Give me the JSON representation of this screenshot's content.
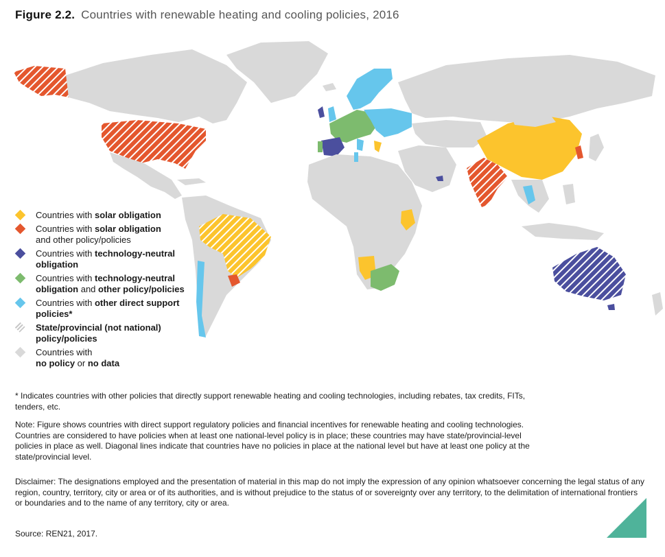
{
  "figure": {
    "label": "Figure 2.2.",
    "title": "Countries with renewable heating and cooling policies, 2016"
  },
  "colors": {
    "solar_obligation": "#fcc42d",
    "solar_plus_other": "#e4572e",
    "tech_neutral": "#4b4f9e",
    "tech_neutral_plus_other": "#7dbb6e",
    "other_direct": "#66c6ec",
    "no_data": "#d9d9d9",
    "corner_accent": "#4fb39a"
  },
  "legend": [
    {
      "id": "solar",
      "pre": "Countries with ",
      "bold": "solar obligation",
      "mid": "",
      "bold2": "",
      "post": "",
      "color": "#fcc42d"
    },
    {
      "id": "solar-other",
      "pre": "Countries with ",
      "bold": "solar obligation",
      "mid": "",
      "bold2": "",
      "post": "and other policy/policies",
      "color": "#e4572e"
    },
    {
      "id": "tech",
      "pre": "Countries with ",
      "bold": "technology-neutral obligation",
      "mid": "",
      "bold2": "",
      "post": "",
      "color": "#4b4f9e"
    },
    {
      "id": "tech-other",
      "pre": "Countries with ",
      "bold": "technology-neutral obligation",
      "mid": " and ",
      "bold2": "other policy/policies",
      "post": "",
      "color": "#7dbb6e"
    },
    {
      "id": "other",
      "pre": "Countries with ",
      "bold": "other direct support policies*",
      "mid": "",
      "bold2": "",
      "post": "",
      "color": "#66c6ec"
    },
    {
      "id": "state",
      "pre": "",
      "bold": "State/provincial (not national) policy/policies",
      "mid": "",
      "bold2": "",
      "post": "",
      "color": "striped"
    },
    {
      "id": "none",
      "pre": "Countries with ",
      "bold": "no policy",
      "mid": " or ",
      "bold2": "no data",
      "post": "",
      "color": "#d9d9d9"
    }
  ],
  "footnote": "* Indicates countries with other policies that directly support renewable heating and cooling technologies, including rebates, tax credits, FITs, tenders, etc.",
  "note": "Note: Figure shows countries with direct support regulatory policies and financial incentives for renewable heating and cooling technologies. Countries are considered to have policies when at least one national-level policy is in place; these countries may have state/provincial-level policies in place as well. Diagonal lines indicate that countries have no policies in place at the national level but have at least one policy at the state/provincial level.",
  "disclaimer": "Disclaimer: The designations employed and the presentation of material in this map do not imply the expression of any opinion whatsoever concerning the legal status of any region, country, territory, city or area or of its authorities, and is without prejudice to the status of or sovereignty over any territory, to the delimitation of international frontiers or boundaries and to the name of any territory, city or area.",
  "source": "Source: REN21, 2017."
}
